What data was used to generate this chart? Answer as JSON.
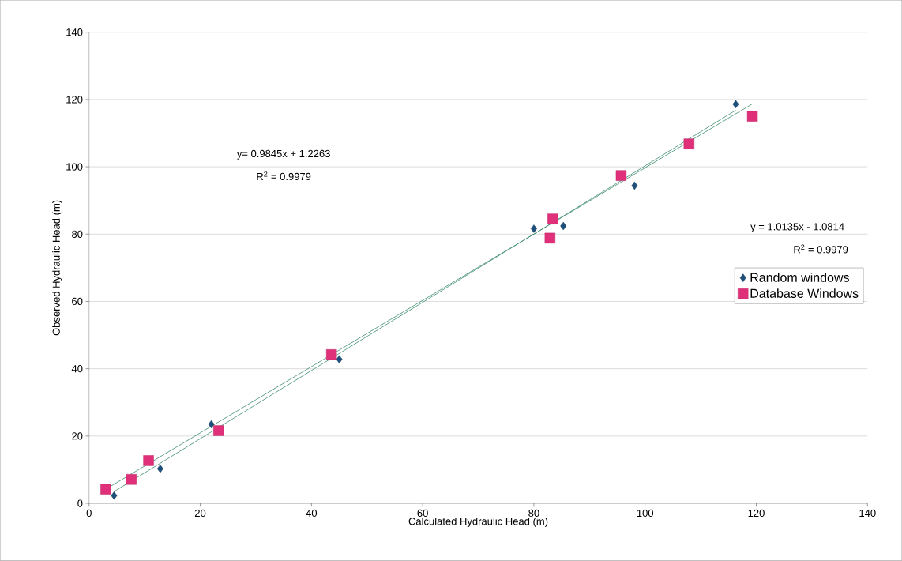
{
  "chart_data": {
    "type": "scatter",
    "xlabel": "Calculated Hydraulic Head (m)",
    "ylabel": "Observed Hydraulic Head (m)",
    "xlim": [
      0,
      140
    ],
    "ylim": [
      0,
      140
    ],
    "xticks": [
      0,
      20,
      40,
      60,
      80,
      100,
      120,
      140
    ],
    "yticks": [
      0,
      20,
      40,
      60,
      80,
      100,
      120,
      140
    ],
    "grid": "y",
    "legend": "right",
    "series": [
      {
        "name": "Random windows",
        "marker": "diamond",
        "color": "#1d4f7a",
        "x": [
          4.5,
          12.8,
          22.0,
          45.0,
          80.0,
          85.3,
          98.1,
          116.3
        ],
        "values": [
          2.3,
          10.3,
          23.5,
          42.8,
          81.6,
          82.4,
          94.4,
          118.6
        ]
      },
      {
        "name": "Database Windows",
        "marker": "square",
        "color": "#e0307a",
        "x": [
          3.0,
          7.6,
          10.7,
          23.3,
          43.6,
          82.9,
          83.4,
          95.7,
          107.9,
          119.3
        ],
        "values": [
          4.2,
          7.1,
          12.7,
          21.6,
          44.2,
          78.8,
          84.5,
          97.4,
          106.8,
          115.0
        ]
      },
      {
        "type": "line",
        "marker": "none",
        "color": "#3a8a6a",
        "x": [
          3.0,
          119.3
        ],
        "values": [
          4.2,
          118.7
        ]
      },
      {
        "type": "line",
        "marker": "none",
        "color": "#3a8a6a",
        "x": [
          4.5,
          116.3
        ],
        "values": [
          3.5,
          116.8
        ]
      }
    ],
    "annotations": [
      "y= 0.9845x + 1.2263",
      "R$^{2}$ = 0.9979",
      "y = 1.0135x - 1.0814",
      "R$^{2}$ = 0.9979"
    ]
  }
}
